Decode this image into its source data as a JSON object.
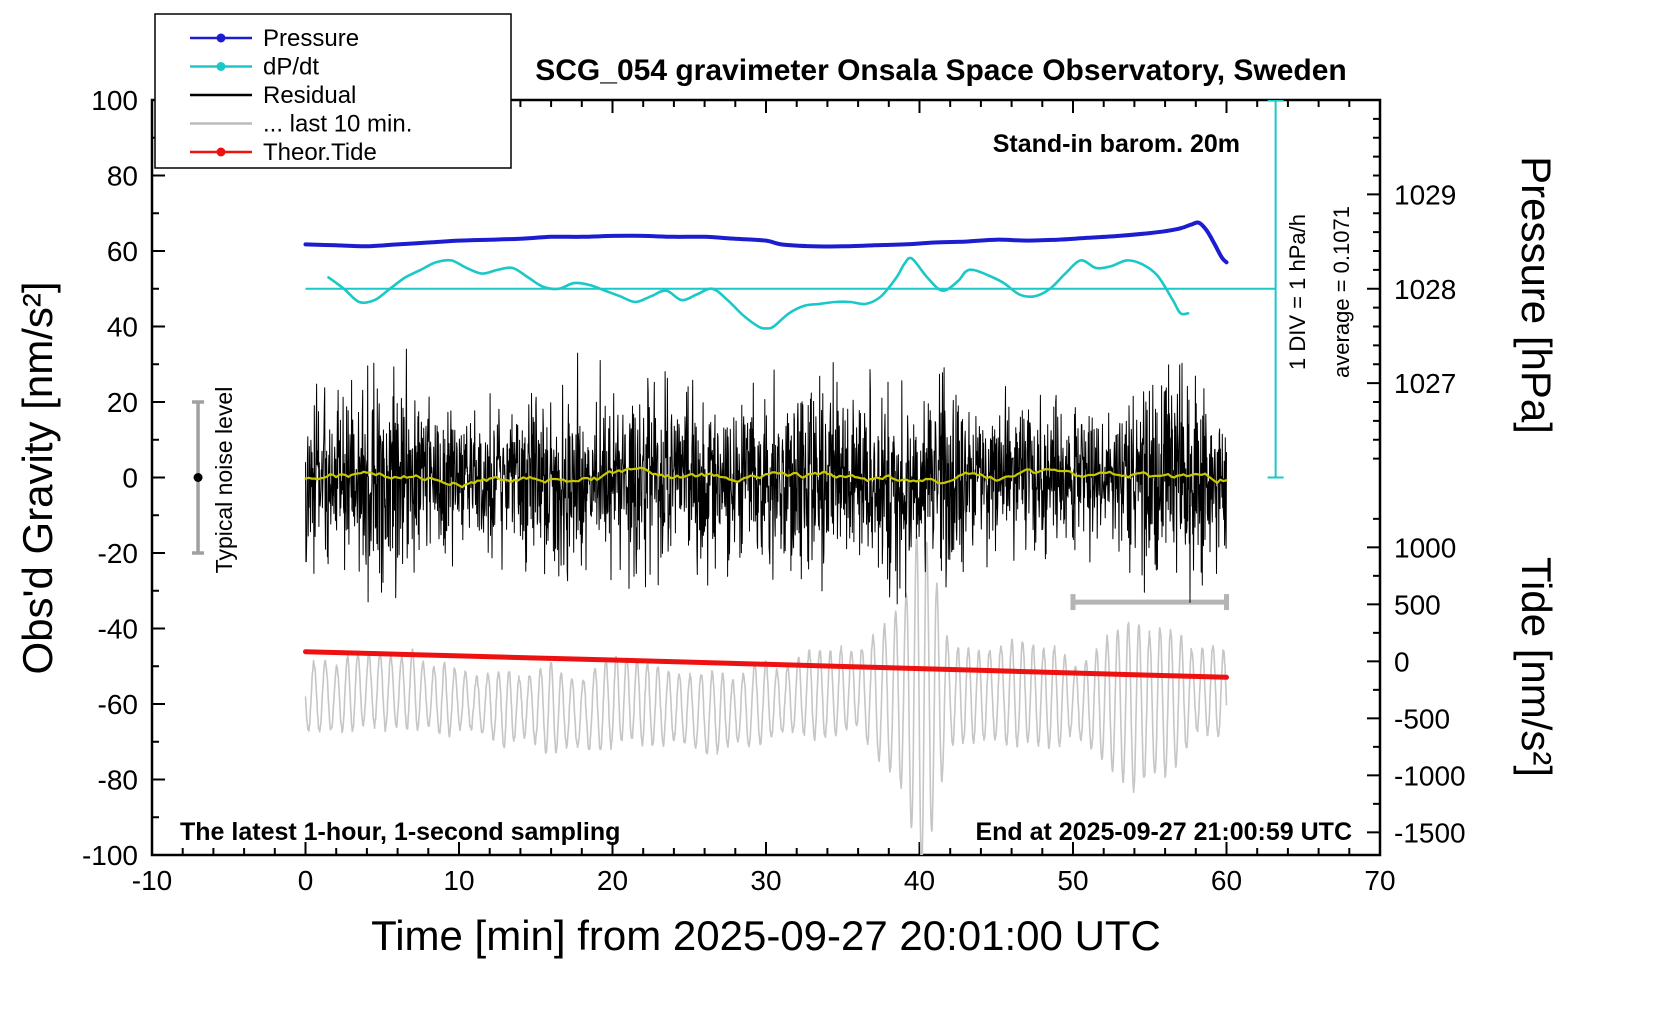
{
  "title": "SCG_054 gravimeter Onsala Space Observatory, Sweden",
  "annotations": {
    "barometer": "Stand-in barom. 20m",
    "div_scale": "1 DIV = 1 hPa/h",
    "average": "average = 0.1071",
    "noise_level": "Typical noise level",
    "sampling_note": "The latest 1-hour, 1-second sampling",
    "end_time": "End at 2025-09-27 21:00:59 UTC"
  },
  "legend": {
    "items": [
      {
        "label": "Pressure",
        "color": "#1d1dd0",
        "marker": true
      },
      {
        "label": "dP/dt",
        "color": "#1ac8c8",
        "marker": true
      },
      {
        "label": "Residual",
        "color": "#000000",
        "marker": false
      },
      {
        "label": "... last 10 min.",
        "color": "#bcbcbc",
        "marker": false
      },
      {
        "label": "Theor.Tide",
        "color": "#ee1111",
        "marker": true
      }
    ]
  },
  "chart_data": {
    "type": "line",
    "title": "SCG_054 gravimeter Onsala Space Observatory, Sweden",
    "xlabel": "Time [min] from 2025-09-27 20:01:00 UTC",
    "ylabel_left": "Obs'd Gravity [nm/s²]",
    "ylabel_right_top": "Pressure [hPa]",
    "ylabel_right_bottom": "Tide [nm/s²]",
    "x_axis": {
      "min": -10,
      "max": 70,
      "major_ticks": [
        -10,
        0,
        10,
        20,
        30,
        40,
        50,
        60,
        70
      ],
      "minor_step": 2
    },
    "gravity_axis": {
      "min": -100,
      "max": 100,
      "major_ticks": [
        -100,
        -80,
        -60,
        -40,
        -20,
        0,
        20,
        40,
        60,
        80,
        100
      ],
      "minor_step": 10
    },
    "pressure_axis": {
      "ticks": [
        1029,
        1028,
        1027
      ],
      "gravity_at_1028": 50,
      "gravity_per_hpa": 25,
      "minor_step_hpa": 0.2
    },
    "tide_axis": {
      "ticks": [
        1000,
        500,
        0,
        -500,
        -1000,
        -1500
      ],
      "minor_ticks": [
        1250,
        750,
        250,
        -250,
        -750,
        -1250
      ],
      "gravity_at_0": -48.7,
      "gravity_per_500": 15.1
    },
    "series": {
      "pressure": {
        "name": "Pressure",
        "color": "#1d1dd0",
        "width": 4,
        "points_hpa": [
          [
            0,
            1028.47
          ],
          [
            2,
            1028.46
          ],
          [
            4,
            1028.45
          ],
          [
            6,
            1028.47
          ],
          [
            8,
            1028.49
          ],
          [
            10,
            1028.51
          ],
          [
            12,
            1028.52
          ],
          [
            14,
            1028.53
          ],
          [
            16,
            1028.55
          ],
          [
            18,
            1028.55
          ],
          [
            20,
            1028.56
          ],
          [
            22,
            1028.56
          ],
          [
            24,
            1028.55
          ],
          [
            26,
            1028.55
          ],
          [
            28,
            1028.53
          ],
          [
            30,
            1028.51
          ],
          [
            31,
            1028.47
          ],
          [
            33,
            1028.45
          ],
          [
            35,
            1028.45
          ],
          [
            37,
            1028.46
          ],
          [
            39,
            1028.47
          ],
          [
            41,
            1028.49
          ],
          [
            43,
            1028.5
          ],
          [
            45,
            1028.52
          ],
          [
            47,
            1028.51
          ],
          [
            49,
            1028.52
          ],
          [
            51,
            1028.54
          ],
          [
            53,
            1028.56
          ],
          [
            55,
            1028.59
          ],
          [
            56,
            1028.61
          ],
          [
            57,
            1028.64
          ],
          [
            57.7,
            1028.68
          ],
          [
            58.2,
            1028.7
          ],
          [
            58.7,
            1028.62
          ],
          [
            59.2,
            1028.48
          ],
          [
            59.7,
            1028.33
          ],
          [
            60,
            1028.28
          ]
        ]
      },
      "dpdt": {
        "name": "dP/dt",
        "color": "#1ac8c8",
        "width": 2.6,
        "zero_line_gravity": 50,
        "zero_line_x": [
          0,
          63.2
        ],
        "indicator_x": 63.2,
        "indicator_gravity_span": [
          0,
          100
        ],
        "points_gravity": [
          [
            1.5,
            53
          ],
          [
            2.5,
            50
          ],
          [
            3.5,
            46.5
          ],
          [
            4.5,
            47
          ],
          [
            5.5,
            50
          ],
          [
            6.5,
            53
          ],
          [
            7.5,
            55
          ],
          [
            8.5,
            57
          ],
          [
            9.5,
            57.5
          ],
          [
            10.5,
            55.5
          ],
          [
            11.5,
            54
          ],
          [
            12.5,
            55
          ],
          [
            13.5,
            55.5
          ],
          [
            14.5,
            53
          ],
          [
            15.5,
            50.5
          ],
          [
            16.5,
            50
          ],
          [
            17.5,
            51.5
          ],
          [
            18.5,
            51
          ],
          [
            19.5,
            49.5
          ],
          [
            20.5,
            48
          ],
          [
            21.5,
            46.5
          ],
          [
            22.5,
            48
          ],
          [
            23.5,
            49.5
          ],
          [
            24.5,
            47
          ],
          [
            25.5,
            48.5
          ],
          [
            26.5,
            50
          ],
          [
            27.5,
            47
          ],
          [
            28.5,
            43
          ],
          [
            29.5,
            40
          ],
          [
            30,
            39.5
          ],
          [
            30.5,
            40
          ],
          [
            31.5,
            43.5
          ],
          [
            32.5,
            45.5
          ],
          [
            33.5,
            46
          ],
          [
            34.5,
            46.5
          ],
          [
            35.5,
            46.5
          ],
          [
            36.5,
            46
          ],
          [
            37.5,
            48
          ],
          [
            38.5,
            53
          ],
          [
            39,
            56.5
          ],
          [
            39.5,
            58
          ],
          [
            40.5,
            53
          ],
          [
            41.5,
            49.5
          ],
          [
            42.5,
            52
          ],
          [
            43,
            54.5
          ],
          [
            43.5,
            55
          ],
          [
            44.5,
            53.5
          ],
          [
            45.5,
            51.5
          ],
          [
            46.5,
            48.5
          ],
          [
            47.5,
            48
          ],
          [
            48.5,
            50
          ],
          [
            49.5,
            54
          ],
          [
            50.5,
            57.5
          ],
          [
            51.5,
            55.5
          ],
          [
            52.5,
            56
          ],
          [
            53.5,
            57.5
          ],
          [
            54.5,
            56.5
          ],
          [
            55.5,
            53.5
          ],
          [
            56.5,
            47
          ],
          [
            57,
            43.5
          ],
          [
            57.5,
            43.5
          ]
        ]
      },
      "residual": {
        "name": "Residual",
        "color": "#000000",
        "width": 1,
        "x_range": [
          0,
          60
        ],
        "center": 0,
        "points_per_min": 40,
        "seed": 20250927,
        "amp_envelope_step_min": 2,
        "amp_envelope": [
          30,
          34,
          44,
          40,
          30,
          28,
          26,
          32,
          36,
          40,
          30,
          38,
          28,
          34,
          26,
          28,
          42,
          36,
          30,
          40,
          34,
          38,
          28,
          26,
          30,
          28,
          26,
          30,
          48,
          34,
          26
        ]
      },
      "residual_mean": {
        "name": "Residual smoothed",
        "color": "#c8c800",
        "width": 2.2,
        "x_range": [
          0,
          60
        ],
        "amplitude": 1.5,
        "seed": 54
      },
      "tide_fast": {
        "name": "... last 10 min.",
        "color": "#c6c6c6",
        "width": 1.6,
        "x_range": [
          0,
          60
        ],
        "center_tide": -330,
        "period_min": 0.85,
        "seed": 927,
        "amp_envelope_step_min": 2,
        "amp_envelope_tide": [
          260,
          300,
          280,
          340,
          300,
          330,
          280,
          310,
          350,
          300,
          390,
          310,
          330,
          300,
          280,
          310,
          360,
          320,
          310,
          650,
          1300,
          520,
          360,
          430,
          390,
          360,
          470,
          620,
          560,
          420,
          350
        ]
      },
      "theor_tide": {
        "name": "Theor.Tide",
        "color": "#ee1111",
        "width": 5,
        "points_tide": [
          [
            0,
            85
          ],
          [
            10,
            48
          ],
          [
            20,
            12
          ],
          [
            30,
            -26
          ],
          [
            40,
            -64
          ],
          [
            50,
            -102
          ],
          [
            60,
            -140
          ]
        ]
      }
    },
    "noise_bar": {
      "x_min": -7,
      "gravity_center": 0,
      "gravity_half_span": 20
    },
    "scale_bar": {
      "x_from": 50,
      "x_to": 60,
      "gravity_y": -33
    }
  }
}
